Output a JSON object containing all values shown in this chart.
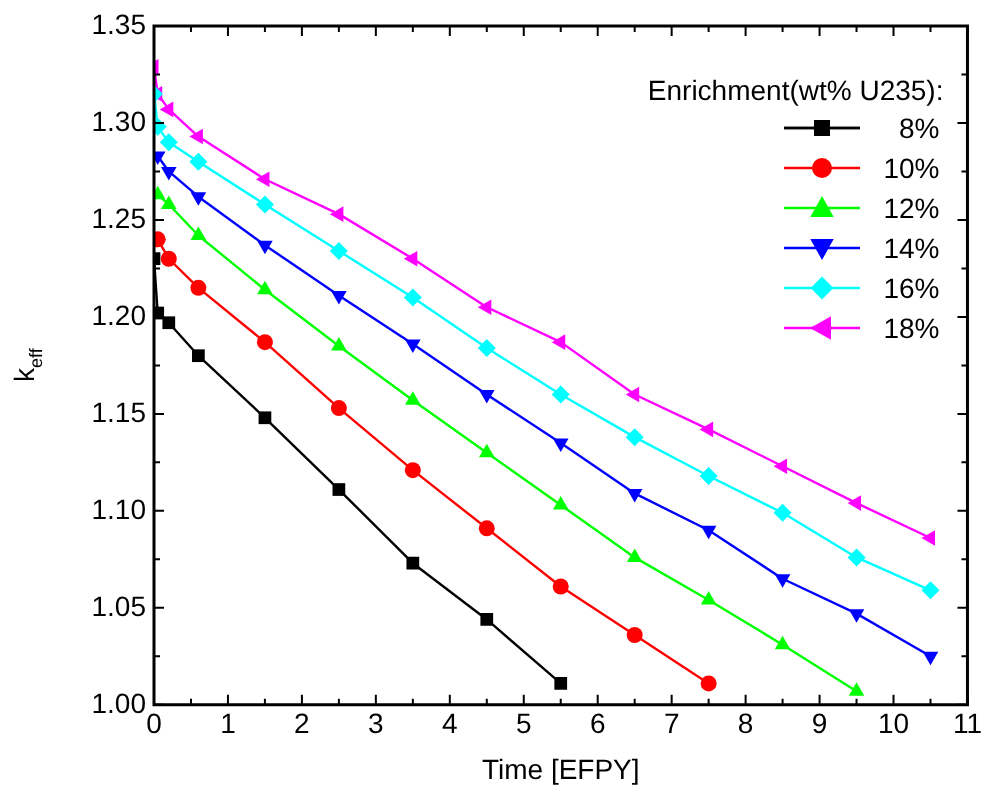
{
  "chart_data": {
    "type": "line",
    "xlabel": "Time [EFPY]",
    "ylabel": "k$_{eff}$",
    "legend_title": "Enrichment(wt% U235):",
    "legend": "top right",
    "grid": false,
    "line_style": "solid",
    "xlim": [
      0,
      11
    ],
    "xticks": [
      0,
      1,
      2,
      3,
      4,
      5,
      6,
      7,
      8,
      9,
      10,
      11
    ],
    "ylim": [
      1.0,
      1.35
    ],
    "yticks": [
      {
        "value": 1.0,
        "label": "1.00"
      },
      {
        "value": 1.05,
        "label": "1.05"
      },
      {
        "value": 1.1,
        "label": "1.10"
      },
      {
        "value": 1.15,
        "label": "1.15"
      },
      {
        "value": 1.2,
        "label": "1.20"
      },
      {
        "value": 1.25,
        "label": "1.25"
      },
      {
        "value": 1.3,
        "label": "1.30"
      },
      {
        "value": 1.35,
        "label": "1.35"
      }
    ],
    "series": [
      {
        "name": "8%",
        "color": "#000000",
        "marker": "square",
        "x": [
          0,
          0.05,
          0.2,
          0.6,
          1.5,
          2.5,
          3.5,
          4.5,
          5.5
        ],
        "values": [
          1.23,
          1.202,
          1.197,
          1.18,
          1.148,
          1.111,
          1.073,
          1.044,
          1.011
        ]
      },
      {
        "name": "10%",
        "color": "#ff0000",
        "marker": "circle",
        "x": [
          0.05,
          0.2,
          0.6,
          1.5,
          2.5,
          3.5,
          4.5,
          5.5,
          6.5,
          7.5
        ],
        "values": [
          1.24,
          1.23,
          1.215,
          1.187,
          1.153,
          1.121,
          1.091,
          1.061,
          1.036,
          1.011
        ]
      },
      {
        "name": "12%",
        "color": "#00ff00",
        "marker": "triangle",
        "x": [
          0.05,
          0.2,
          0.6,
          1.5,
          2.5,
          3.5,
          4.5,
          5.5,
          6.5,
          7.5,
          8.5,
          9.5
        ],
        "values": [
          1.263,
          1.258,
          1.242,
          1.214,
          1.185,
          1.157,
          1.13,
          1.103,
          1.076,
          1.054,
          1.031,
          1.007
        ]
      },
      {
        "name": "14%",
        "color": "#0000ff",
        "marker": "triangle-down",
        "x": [
          0.05,
          0.2,
          0.6,
          1.5,
          2.5,
          3.5,
          4.5,
          5.5,
          6.5,
          7.5,
          8.5,
          9.5,
          10.5
        ],
        "values": [
          1.283,
          1.275,
          1.262,
          1.237,
          1.211,
          1.186,
          1.16,
          1.135,
          1.109,
          1.09,
          1.065,
          1.047,
          1.025
        ]
      },
      {
        "name": "16%",
        "color": "#00ffff",
        "marker": "diamond",
        "x": [
          0,
          0.05,
          0.2,
          0.6,
          1.5,
          2.5,
          3.5,
          4.5,
          5.5,
          6.5,
          7.5,
          8.5,
          9.5,
          10.5
        ],
        "values": [
          1.315,
          1.298,
          1.29,
          1.28,
          1.258,
          1.234,
          1.21,
          1.184,
          1.16,
          1.138,
          1.118,
          1.099,
          1.076,
          1.059
        ]
      },
      {
        "name": "18%",
        "color": "#ff00ff",
        "marker": "triangle-left",
        "x": [
          0,
          0.05,
          0.2,
          0.6,
          1.5,
          2.5,
          3.5,
          4.5,
          5.5,
          6.5,
          7.5,
          8.5,
          9.5,
          10.5
        ],
        "values": [
          1.329,
          1.315,
          1.307,
          1.293,
          1.271,
          1.253,
          1.23,
          1.205,
          1.187,
          1.16,
          1.142,
          1.123,
          1.104,
          1.086
        ]
      }
    ]
  }
}
